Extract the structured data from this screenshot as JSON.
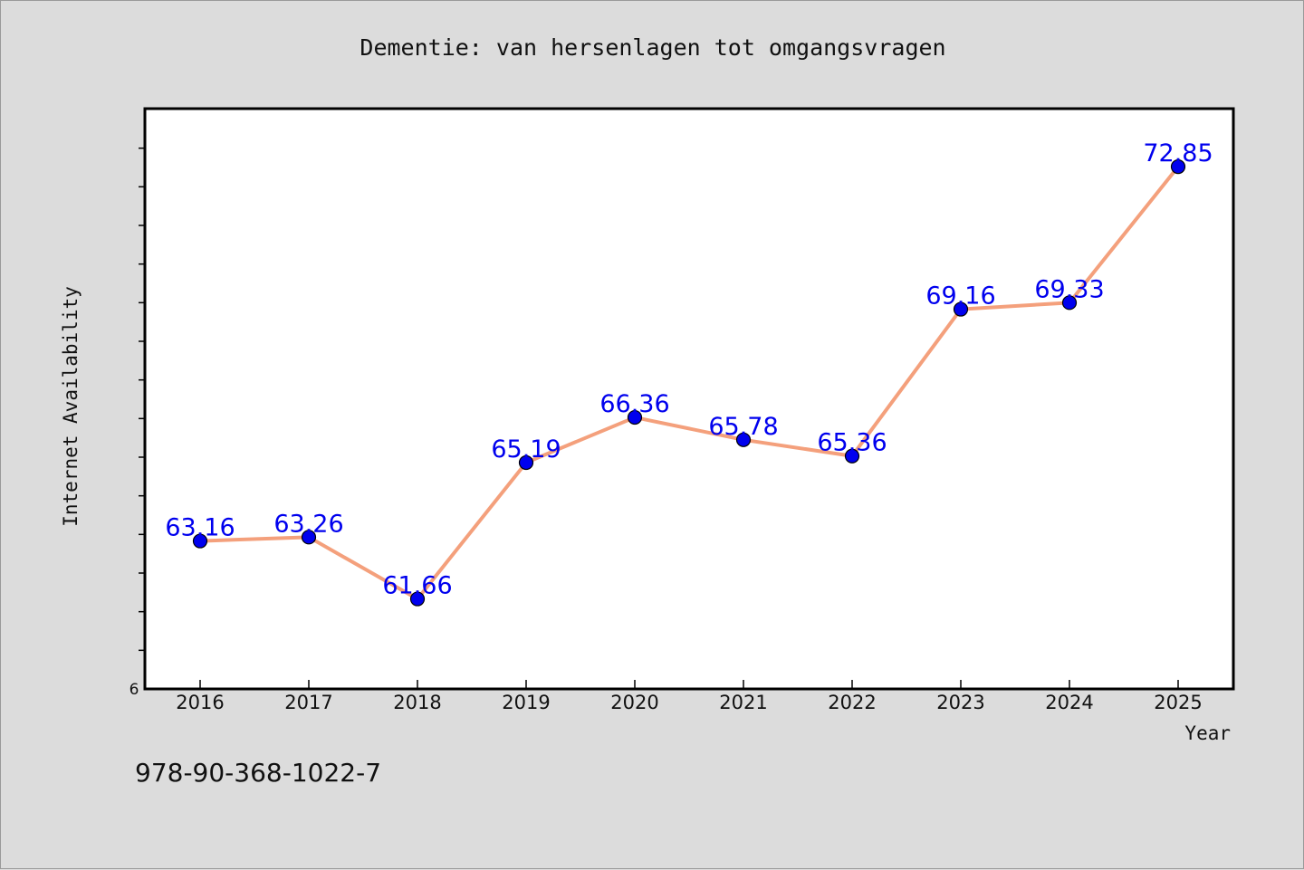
{
  "chart_data": {
    "type": "line",
    "title": "Dementie: van hersenlagen tot omgangsvragen",
    "xlabel": "Year",
    "ylabel": "Internet Availability",
    "y_origin_label": "6",
    "footer": "978-90-368-1022-7",
    "categories": [
      "2016",
      "2017",
      "2018",
      "2019",
      "2020",
      "2021",
      "2022",
      "2023",
      "2024",
      "2025"
    ],
    "values": [
      63.16,
      63.26,
      61.66,
      65.19,
      66.36,
      65.78,
      65.36,
      69.16,
      69.33,
      72.85
    ],
    "data_labels": [
      "63.16",
      "63.26",
      "61.66",
      "65.19",
      "66.36",
      "65.78",
      "65.36",
      "69.16",
      "69.33",
      "72.85"
    ],
    "ylim": [
      59.33,
      74.33
    ],
    "colors": {
      "line": "#f4a07c",
      "marker": "#0000ee",
      "label": "#0000ee",
      "plot_bg": "#ffffff",
      "page_bg": "#dcdcdc"
    }
  }
}
